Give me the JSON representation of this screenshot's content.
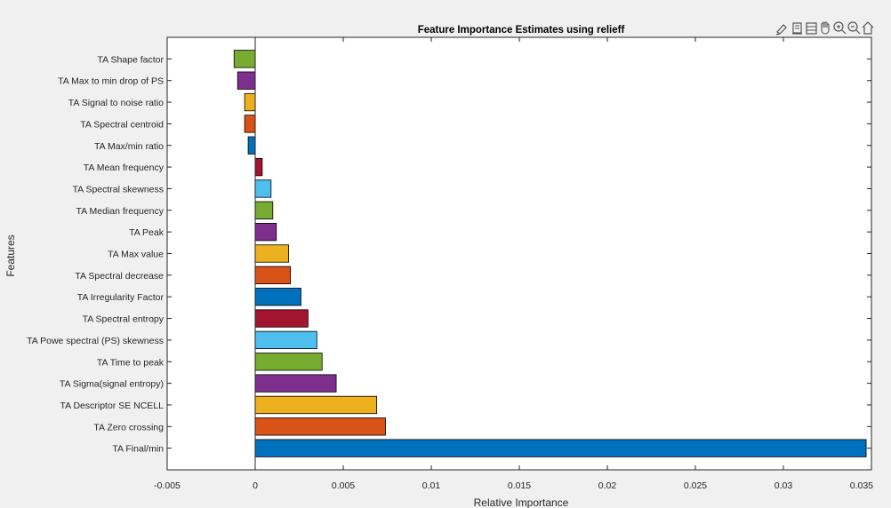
{
  "toolbar": {
    "icons": [
      "brush-icon",
      "data-tips-icon",
      "datacursor-icon",
      "pan-hand-icon",
      "zoom-in-icon",
      "zoom-out-icon",
      "home-icon"
    ]
  },
  "colors": {
    "figure_bg": "#f0f0f0",
    "axes_bg": "#ffffff",
    "palette": [
      "#0072BD",
      "#D95319",
      "#EDB120",
      "#7E2F8E",
      "#77AC30",
      "#4DBEEE",
      "#A2142F"
    ]
  },
  "chart_data": {
    "type": "bar",
    "orientation": "horizontal",
    "title": "Feature Importance Estimates using relieff",
    "xlabel": "Relative Importance",
    "ylabel": "Features",
    "xlim": [
      -0.005,
      0.035
    ],
    "xticks": [
      -0.005,
      0,
      0.005,
      0.01,
      0.015,
      0.02,
      0.025,
      0.03,
      0.035
    ],
    "xtick_labels": [
      "-0.005",
      "0",
      "0.005",
      "0.01",
      "0.015",
      "0.02",
      "0.025",
      "0.03",
      "0.035"
    ],
    "grid": false,
    "legend": "none",
    "categories": [
      "TA  Final/min",
      "TA  Zero crossing",
      "TA  Descriptor SE NCELL",
      "TA  Sigma(signal entropy)",
      "TA  Time to peak",
      "TA  Powe spectral (PS) skewness",
      "TA  Spectral entropy",
      "TA  Irregularity Factor",
      "TA  Spectral decrease",
      "TA  Max value",
      "TA  Peak",
      "TA  Median frequency",
      "TA  Spectral skewness",
      "TA  Mean frequency",
      "TA  Max/min ratio",
      "TA  Spectral centroid",
      "TA  Signal to noise ratio",
      "TA  Max to min drop of PS",
      "TA  Shape factor"
    ],
    "values": [
      0.0347,
      0.0074,
      0.0069,
      0.0046,
      0.0038,
      0.0035,
      0.003,
      0.0026,
      0.002,
      0.0019,
      0.0012,
      0.001,
      0.0009,
      0.0004,
      -0.0004,
      -0.0006,
      -0.0006,
      -0.001,
      -0.0012
    ],
    "bar_colors": [
      "#0072BD",
      "#D95319",
      "#EDB120",
      "#7E2F8E",
      "#77AC30",
      "#4DBEEE",
      "#A2142F",
      "#0072BD",
      "#D95319",
      "#EDB120",
      "#7E2F8E",
      "#77AC30",
      "#4DBEEE",
      "#A2142F",
      "#0072BD",
      "#D95319",
      "#EDB120",
      "#7E2F8E",
      "#77AC30"
    ]
  }
}
